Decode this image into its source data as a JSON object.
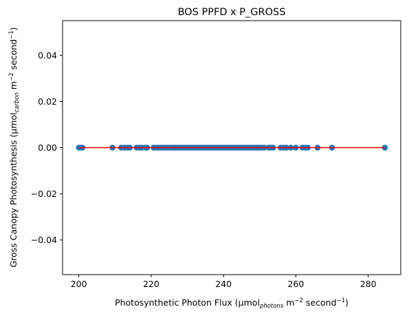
{
  "chart_data": {
    "type": "scatter",
    "title": "BOS PPFD x P_GROSS",
    "xlabel": {
      "prefix": "Photosynthetic Photon Flux (µmol",
      "sub": "photons",
      "mid": " m",
      "sup1": "−2",
      "mid2": " second",
      "sup2": "−1",
      "suffix": ")"
    },
    "ylabel": {
      "prefix": "Gross Canopy Photosynthesis (µmol",
      "sub": "carbon",
      "mid": " m",
      "sup1": "−2",
      "mid2": " second",
      "sup2": "−1",
      "suffix": ")"
    },
    "xlim": [
      195.5,
      289.0
    ],
    "ylim": [
      -0.055,
      0.055
    ],
    "xticks": [
      200,
      220,
      240,
      260,
      280
    ],
    "yticks": [
      -0.04,
      -0.02,
      0.0,
      0.02,
      0.04
    ],
    "xtick_labels": [
      "200",
      "220",
      "240",
      "260",
      "280"
    ],
    "ytick_labels": [
      "−0.04",
      "−0.02",
      "0.00",
      "0.02",
      "0.04"
    ],
    "grid": false,
    "point_color": "#1f77b4",
    "line_color": "#ff0000",
    "series": [
      {
        "values": [
          [
            200.0,
            0
          ],
          [
            200.5,
            0
          ],
          [
            201.0,
            0
          ],
          [
            209.3,
            0
          ],
          [
            211.7,
            0
          ],
          [
            212.6,
            0
          ],
          [
            213.4,
            0
          ],
          [
            214.1,
            0
          ],
          [
            216.0,
            0
          ],
          [
            216.8,
            0
          ],
          [
            217.4,
            0
          ],
          [
            218.4,
            0
          ],
          [
            218.9,
            0
          ],
          [
            220.7,
            0
          ],
          [
            221.4,
            0
          ],
          [
            222.0,
            0
          ],
          [
            222.6,
            0
          ],
          [
            223.3,
            0
          ],
          [
            224.0,
            0
          ],
          [
            224.7,
            0
          ],
          [
            225.4,
            0
          ],
          [
            226.1,
            0
          ],
          [
            226.8,
            0
          ],
          [
            227.5,
            0
          ],
          [
            228.2,
            0
          ],
          [
            228.9,
            0
          ],
          [
            229.6,
            0
          ],
          [
            230.3,
            0
          ],
          [
            231.0,
            0
          ],
          [
            231.7,
            0
          ],
          [
            232.4,
            0
          ],
          [
            233.1,
            0
          ],
          [
            233.8,
            0
          ],
          [
            234.5,
            0
          ],
          [
            235.2,
            0
          ],
          [
            235.9,
            0
          ],
          [
            236.6,
            0
          ],
          [
            237.3,
            0
          ],
          [
            238.0,
            0
          ],
          [
            238.7,
            0
          ],
          [
            239.4,
            0
          ],
          [
            240.1,
            0
          ],
          [
            240.8,
            0
          ],
          [
            241.5,
            0
          ],
          [
            242.2,
            0
          ],
          [
            242.9,
            0
          ],
          [
            243.6,
            0
          ],
          [
            244.3,
            0
          ],
          [
            245.0,
            0
          ],
          [
            245.7,
            0
          ],
          [
            246.4,
            0
          ],
          [
            247.1,
            0
          ],
          [
            247.8,
            0
          ],
          [
            248.5,
            0
          ],
          [
            249.2,
            0
          ],
          [
            249.9,
            0
          ],
          [
            250.6,
            0
          ],
          [
            251.3,
            0
          ],
          [
            252.5,
            0
          ],
          [
            253.1,
            0
          ],
          [
            253.7,
            0
          ],
          [
            255.8,
            0
          ],
          [
            256.6,
            0
          ],
          [
            257.4,
            0
          ],
          [
            258.6,
            0
          ],
          [
            260.0,
            0
          ],
          [
            261.8,
            0
          ],
          [
            262.6,
            0
          ],
          [
            263.3,
            0
          ],
          [
            266.0,
            0
          ],
          [
            270.0,
            0
          ],
          [
            284.6,
            0
          ]
        ]
      }
    ],
    "fit_line": {
      "x": [
        200.0,
        284.6
      ],
      "y": [
        0.0,
        0.0
      ]
    }
  }
}
